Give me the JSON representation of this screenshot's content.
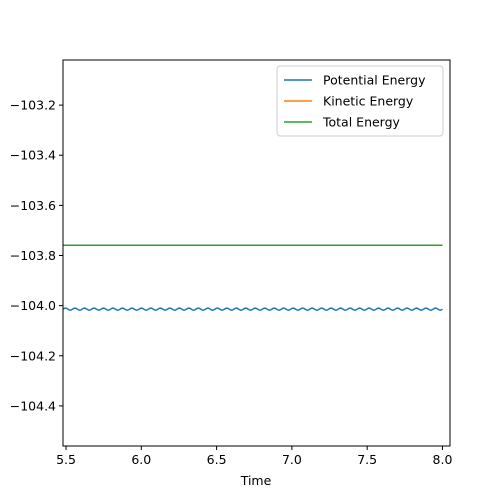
{
  "chart_data": {
    "type": "line",
    "title": "",
    "xlabel": "Time",
    "ylabel": "",
    "xlim": [
      5.48,
      8.05
    ],
    "ylim": [
      -104.56,
      -103.02
    ],
    "xticks": [
      5.5,
      6.0,
      6.5,
      7.0,
      7.5,
      8.0
    ],
    "xtick_labels": [
      "5.5",
      "6.0",
      "6.5",
      "7.0",
      "7.5",
      "8.0"
    ],
    "yticks": [
      -103.2,
      -103.4,
      -103.6,
      -103.8,
      -104.0,
      -104.2,
      -104.4
    ],
    "ytick_labels": [
      "−103.2",
      "−103.4",
      "−103.6",
      "−103.8",
      "−104.0",
      "−104.2",
      "−104.4"
    ],
    "grid": false,
    "legend_position": "top-right",
    "series": [
      {
        "name": "Potential Energy",
        "color": "#1f77b4",
        "x_range": [
          5.48,
          8.0
        ],
        "mean": -104.014,
        "oscillation_amplitude": 0.004,
        "oscillation_period": 0.063
      },
      {
        "name": "Kinetic Energy",
        "color": "#ff7f0e",
        "x": [],
        "y": []
      },
      {
        "name": "Total Energy",
        "color": "#2ca02c",
        "x": [
          5.48,
          8.0
        ],
        "y": [
          -103.759,
          -103.759
        ]
      }
    ]
  }
}
